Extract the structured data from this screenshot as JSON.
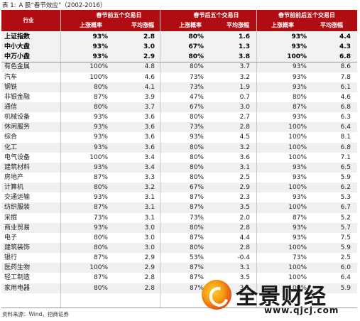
{
  "caption": {
    "label": "表 1:",
    "title": "A 股“春节效应”",
    "years": "（2002-2016）"
  },
  "header": {
    "industry": "行业",
    "group_before": "春节前五个交易日",
    "group_after": "春节后五个交易日",
    "group_around": "春节前前后五个交易日",
    "prob": "上涨概率",
    "avg": "平均涨幅"
  },
  "rows": [
    {
      "name": "上证指数",
      "b_prob": "93%",
      "b_avg": "2.8",
      "a_prob": "80%",
      "a_avg": "1.6",
      "r_prob": "93%",
      "r_avg": "4.4",
      "index": true
    },
    {
      "name": "中小大盘",
      "b_prob": "93%",
      "b_avg": "3.0",
      "a_prob": "67%",
      "a_avg": "1.3",
      "r_prob": "93%",
      "r_avg": "4.3",
      "index": true
    },
    {
      "name": "中万小盘",
      "b_prob": "93%",
      "b_avg": "2.9",
      "a_prob": "80%",
      "a_avg": "3.8",
      "r_prob": "100%",
      "r_avg": "6.8",
      "index": true
    },
    {
      "name": "有色金属",
      "b_prob": "100%",
      "b_avg": "4.8",
      "a_prob": "80%",
      "a_avg": "3.7",
      "r_prob": "93%",
      "r_avg": "8.6"
    },
    {
      "name": "汽车",
      "b_prob": "100%",
      "b_avg": "4.6",
      "a_prob": "73%",
      "a_avg": "3.2",
      "r_prob": "93%",
      "r_avg": "7.8"
    },
    {
      "name": "钢铁",
      "b_prob": "80%",
      "b_avg": "4.1",
      "a_prob": "73%",
      "a_avg": "1.9",
      "r_prob": "93%",
      "r_avg": "6.1"
    },
    {
      "name": "非银金融",
      "b_prob": "87%",
      "b_avg": "3.9",
      "a_prob": "47%",
      "a_avg": "0.7",
      "r_prob": "80%",
      "r_avg": "4.6"
    },
    {
      "name": "通信",
      "b_prob": "80%",
      "b_avg": "3.7",
      "a_prob": "67%",
      "a_avg": "3.0",
      "r_prob": "87%",
      "r_avg": "6.8"
    },
    {
      "name": "机械设备",
      "b_prob": "93%",
      "b_avg": "3.6",
      "a_prob": "80%",
      "a_avg": "2.7",
      "r_prob": "93%",
      "r_avg": "6.3"
    },
    {
      "name": "休闲服务",
      "b_prob": "93%",
      "b_avg": "3.6",
      "a_prob": "73%",
      "a_avg": "2.8",
      "r_prob": "100%",
      "r_avg": "6.4"
    },
    {
      "name": "综合",
      "b_prob": "93%",
      "b_avg": "3.6",
      "a_prob": "93%",
      "a_avg": "4.5",
      "r_prob": "100%",
      "r_avg": "8.1"
    },
    {
      "name": "化工",
      "b_prob": "93%",
      "b_avg": "3.6",
      "a_prob": "80%",
      "a_avg": "3.2",
      "r_prob": "100%",
      "r_avg": "6.8"
    },
    {
      "name": "电气设备",
      "b_prob": "100%",
      "b_avg": "3.4",
      "a_prob": "80%",
      "a_avg": "3.6",
      "r_prob": "100%",
      "r_avg": "7.1"
    },
    {
      "name": "建筑材料",
      "b_prob": "93%",
      "b_avg": "3.4",
      "a_prob": "80%",
      "a_avg": "3.1",
      "r_prob": "93%",
      "r_avg": "6.5"
    },
    {
      "name": "房地产",
      "b_prob": "87%",
      "b_avg": "3.3",
      "a_prob": "80%",
      "a_avg": "2.5",
      "r_prob": "93%",
      "r_avg": "5.9"
    },
    {
      "name": "计算机",
      "b_prob": "80%",
      "b_avg": "3.2",
      "a_prob": "67%",
      "a_avg": "2.9",
      "r_prob": "100%",
      "r_avg": "6.2"
    },
    {
      "name": "交通运输",
      "b_prob": "93%",
      "b_avg": "3.1",
      "a_prob": "87%",
      "a_avg": "2.3",
      "r_prob": "93%",
      "r_avg": "5.3"
    },
    {
      "name": "纺织服装",
      "b_prob": "87%",
      "b_avg": "3.1",
      "a_prob": "87%",
      "a_avg": "3.5",
      "r_prob": "100%",
      "r_avg": "6.7"
    },
    {
      "name": "采掘",
      "b_prob": "73%",
      "b_avg": "3.1",
      "a_prob": "73%",
      "a_avg": "2.0",
      "r_prob": "87%",
      "r_avg": "5.2"
    },
    {
      "name": "商业贸易",
      "b_prob": "93%",
      "b_avg": "3.0",
      "a_prob": "80%",
      "a_avg": "2.8",
      "r_prob": "93%",
      "r_avg": "5.7"
    },
    {
      "name": "电子",
      "b_prob": "80%",
      "b_avg": "3.0",
      "a_prob": "87%",
      "a_avg": "4.4",
      "r_prob": "93%",
      "r_avg": "7.5"
    },
    {
      "name": "建筑装饰",
      "b_prob": "80%",
      "b_avg": "3.0",
      "a_prob": "80%",
      "a_avg": "2.8",
      "r_prob": "100%",
      "r_avg": "5.9"
    },
    {
      "name": "银行",
      "b_prob": "87%",
      "b_avg": "2.9",
      "a_prob": "53%",
      "a_avg": "-0.4",
      "r_prob": "73%",
      "r_avg": "2.5"
    },
    {
      "name": "医药生物",
      "b_prob": "100%",
      "b_avg": "2.9",
      "a_prob": "87%",
      "a_avg": "3.1",
      "r_prob": "100%",
      "r_avg": "6.0"
    },
    {
      "name": "轻工制造",
      "b_prob": "87%",
      "b_avg": "2.8",
      "a_prob": "87%",
      "a_avg": "3.5",
      "r_prob": "100%",
      "r_avg": "6.4"
    },
    {
      "name": "家用电器",
      "b_prob": "80%",
      "b_avg": "2.8",
      "a_prob": "87%",
      "a_avg": "3.1",
      "r_prob": "100%",
      "r_avg": "5.9"
    }
  ],
  "source": "资料来源：Wind，招商证券",
  "watermark": {
    "text": "全景财经",
    "url": "www.qjcj.com",
    "logo_colors": [
      "#f39c12",
      "#e24a12",
      "#c0201a"
    ]
  },
  "colors": {
    "header_bg": "#b00d12",
    "header_text": "#ffffff"
  }
}
